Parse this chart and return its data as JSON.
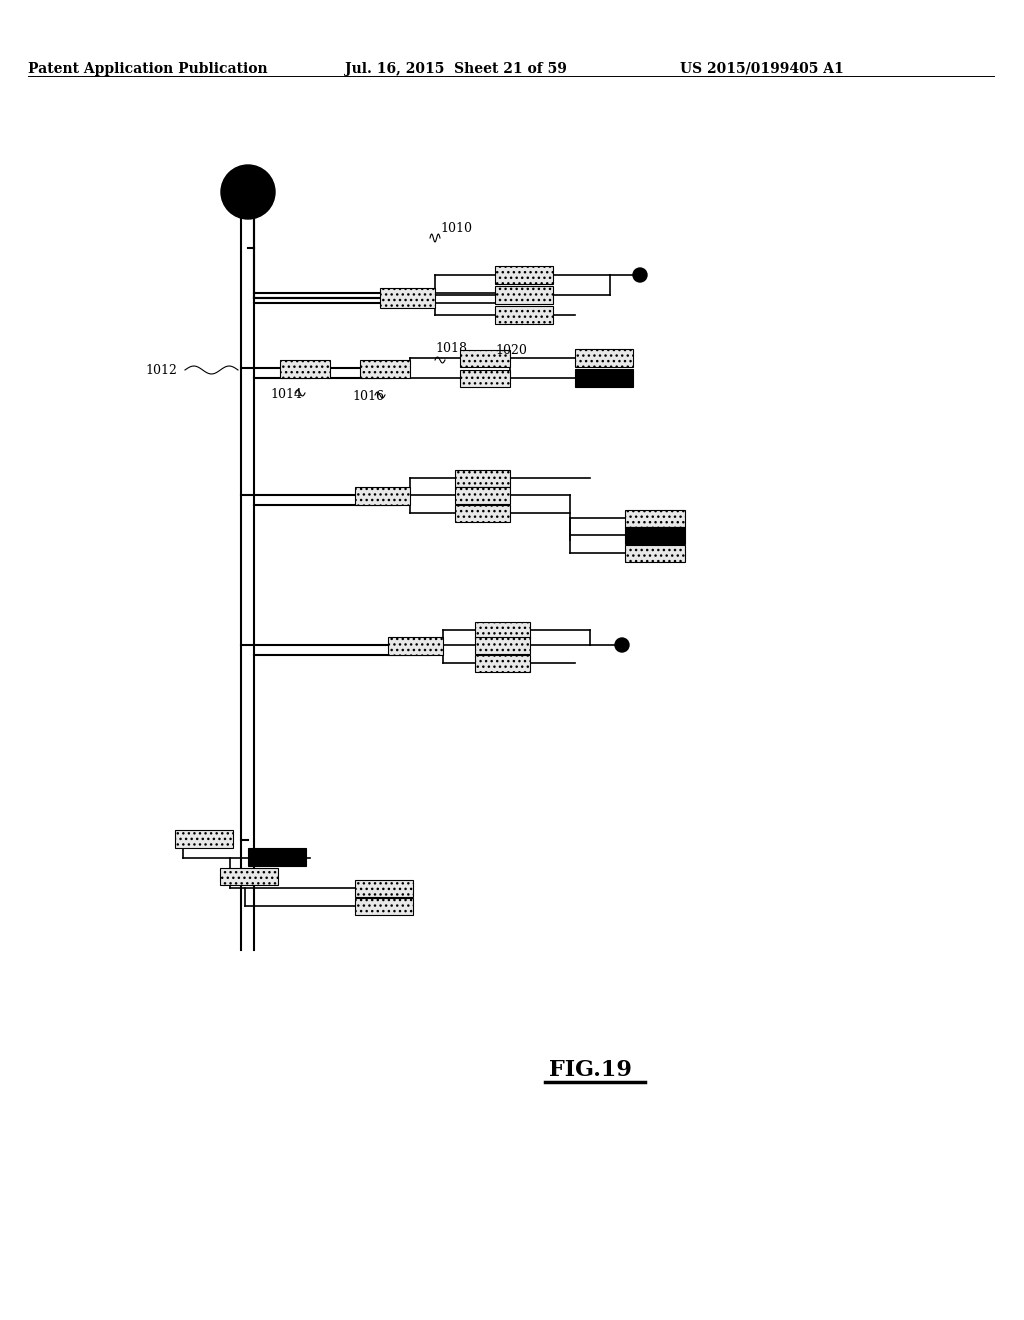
{
  "bg_color": "#ffffff",
  "header_left": "Patent Application Publication",
  "header_mid": "Jul. 16, 2015  Sheet 21 of 59",
  "header_right": "US 2015/0199405 A1",
  "fig_label": "FIG.19"
}
